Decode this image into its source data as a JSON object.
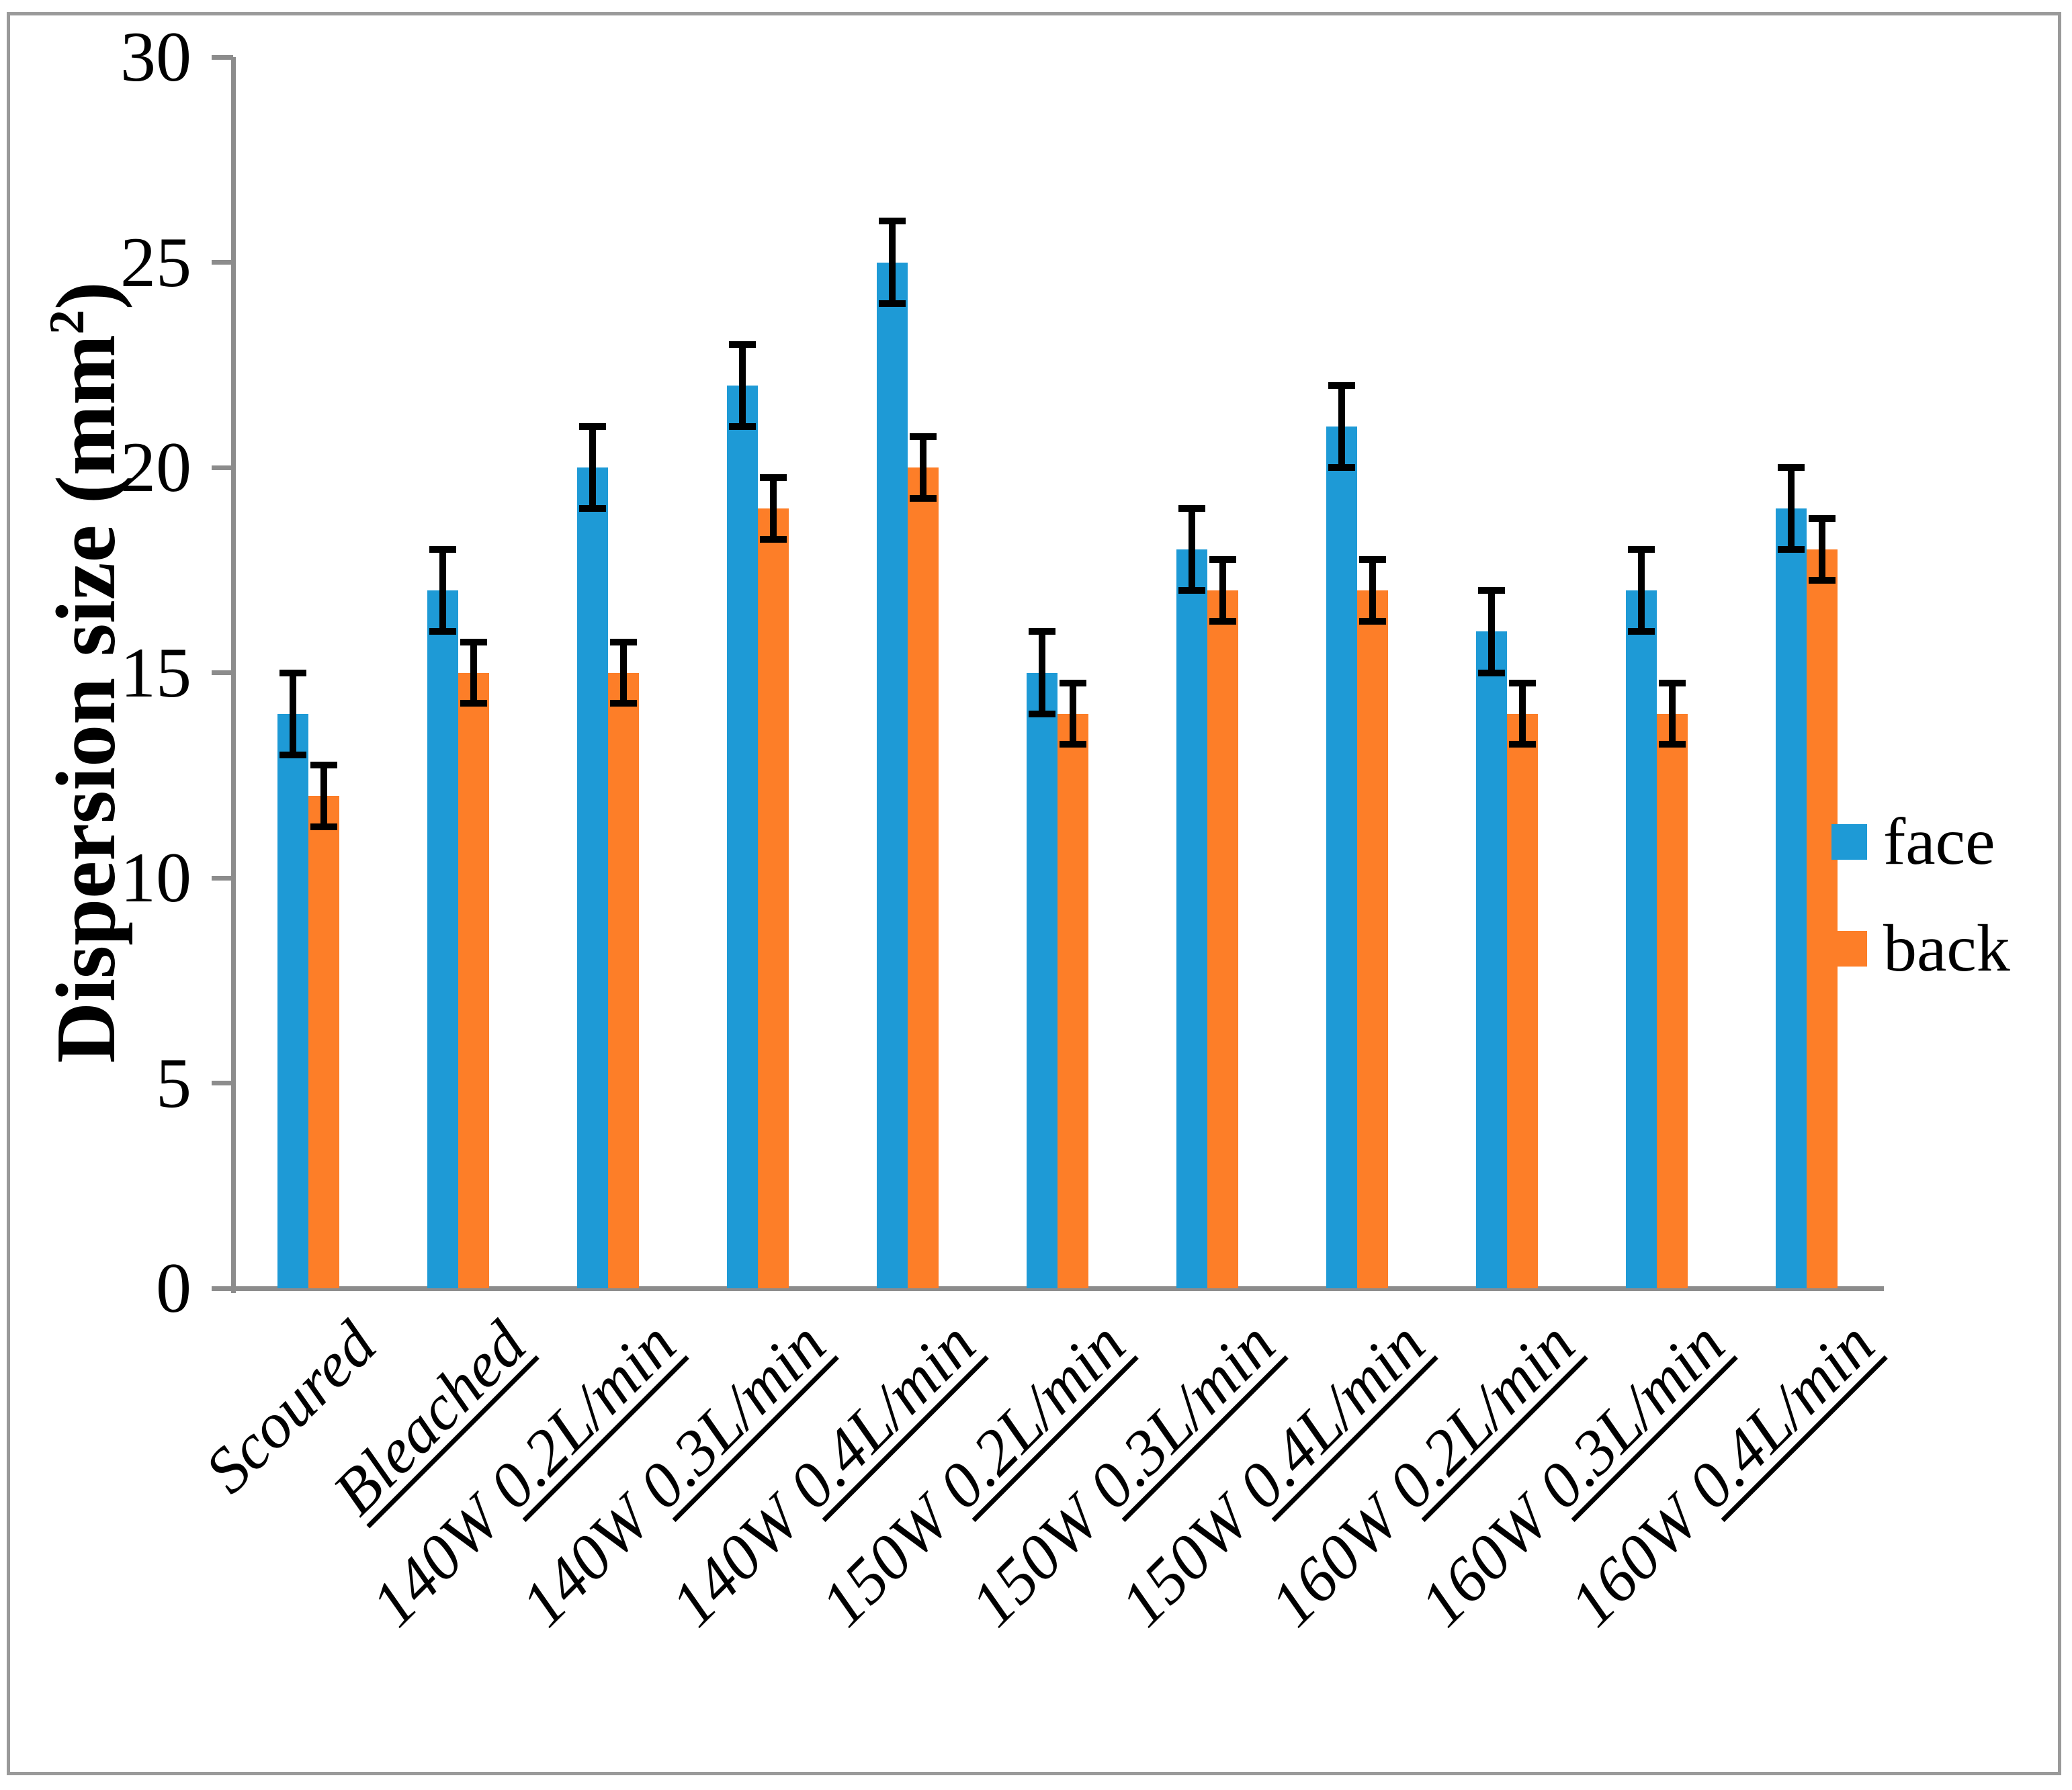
{
  "chart_data": {
    "type": "bar",
    "title": "",
    "ylabel": "Dispersion size (mm²)",
    "ylabel_parts": {
      "main": "Dispersion size (mm",
      "superscript": "2",
      "close": ")"
    },
    "categories": [
      {
        "text": "Scoured",
        "plain": "Scoured",
        "underlined": ""
      },
      {
        "text": "Bleached",
        "plain": "",
        "underlined": "Bleached"
      },
      {
        "text": "140W 0.2L/min",
        "plain": "140W ",
        "underlined": "0.2L/min"
      },
      {
        "text": "140W 0.3L/min",
        "plain": "140W ",
        "underlined": "0.3L/min"
      },
      {
        "text": "140W 0.4L/min",
        "plain": "140W ",
        "underlined": "0.4L/min"
      },
      {
        "text": "150W 0.2L/min",
        "plain": "150W ",
        "underlined": "0.2L/min"
      },
      {
        "text": "150W 0.3L/min",
        "plain": "150W ",
        "underlined": "0.3L/min"
      },
      {
        "text": "150W 0.4L/min",
        "plain": "150W ",
        "underlined": "0.4L/min"
      },
      {
        "text": "160W 0.2L/min",
        "plain": "160W ",
        "underlined": "0.2L/min"
      },
      {
        "text": "160W 0.3L/min",
        "plain": "160W ",
        "underlined": "0.3L/min"
      },
      {
        "text": "160W 0.4L/min",
        "plain": "160W ",
        "underlined": "0.4L/min"
      }
    ],
    "series": [
      {
        "name": "face",
        "color": "#1E9AD6",
        "values": [
          14,
          17,
          20,
          22,
          25,
          15,
          18,
          21,
          16,
          17,
          19
        ],
        "error_bar": 1.0
      },
      {
        "name": "back",
        "color": "#FD7E28",
        "values": [
          12,
          15,
          15,
          19,
          20,
          14,
          17,
          17,
          14,
          14,
          18
        ],
        "error_bar": 0.75
      }
    ],
    "y_axis": {
      "min": 0,
      "max": 30,
      "tick_step": 5,
      "tick_labels": [
        "0",
        "5",
        "10",
        "15",
        "20",
        "25",
        "30"
      ]
    },
    "legend": {
      "items": [
        "face",
        "back"
      ],
      "position": "right-middle"
    },
    "error_bar_color": "#000000",
    "axis_color": "#8C8C8C",
    "grid": "off"
  }
}
